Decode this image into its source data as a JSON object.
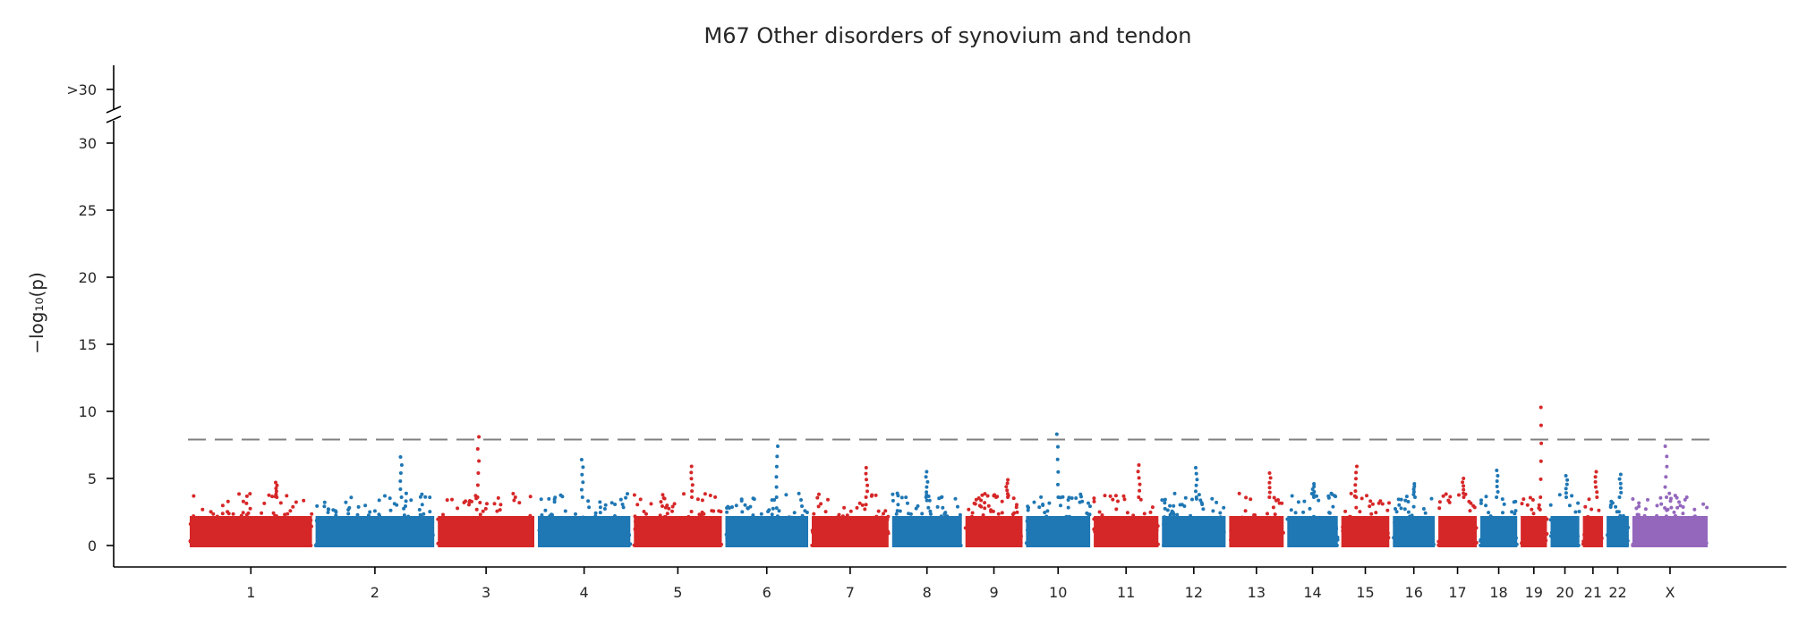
{
  "chart_data": {
    "type": "scatter",
    "title": "M67 Other disorders of synovium and tendon",
    "ylabel": "−log₁₀(p)",
    "y_ticks": [
      0,
      5,
      10,
      15,
      20,
      25,
      30
    ],
    "y_tick_labels": [
      "0",
      "5",
      "10",
      "15",
      "20",
      "25",
      "30"
    ],
    "y_break_label": ">30",
    "ylim": [
      0,
      30
    ],
    "threshold": 7.9,
    "colors": {
      "odd": "#d62728",
      "even": "#1f77b4",
      "X": "#9467bd"
    },
    "chromosomes": [
      {
        "label": "1",
        "start": 0,
        "end": 249,
        "max": 4.7,
        "color": "#d62728"
      },
      {
        "label": "2",
        "start": 249,
        "end": 491,
        "max": 6.6,
        "color": "#1f77b4"
      },
      {
        "label": "3",
        "start": 491,
        "end": 689,
        "max": 8.1,
        "color": "#d62728"
      },
      {
        "label": "4",
        "start": 689,
        "end": 879,
        "max": 6.4,
        "color": "#1f77b4"
      },
      {
        "label": "5",
        "start": 879,
        "end": 1060,
        "max": 5.9,
        "color": "#d62728"
      },
      {
        "label": "6",
        "start": 1060,
        "end": 1231,
        "max": 7.4,
        "color": "#1f77b4"
      },
      {
        "label": "7",
        "start": 1231,
        "end": 1390,
        "max": 5.8,
        "color": "#d62728"
      },
      {
        "label": "8",
        "start": 1390,
        "end": 1535,
        "max": 5.5,
        "color": "#1f77b4"
      },
      {
        "label": "9",
        "start": 1535,
        "end": 1655,
        "max": 4.9,
        "color": "#d62728"
      },
      {
        "label": "10",
        "start": 1655,
        "end": 1789,
        "max": 8.3,
        "color": "#1f77b4"
      },
      {
        "label": "11",
        "start": 1789,
        "end": 1924,
        "max": 6.0,
        "color": "#d62728"
      },
      {
        "label": "12",
        "start": 1924,
        "end": 2057,
        "max": 5.8,
        "color": "#1f77b4"
      },
      {
        "label": "13",
        "start": 2057,
        "end": 2172,
        "max": 5.4,
        "color": "#d62728"
      },
      {
        "label": "14",
        "start": 2172,
        "end": 2279,
        "max": 4.6,
        "color": "#1f77b4"
      },
      {
        "label": "15",
        "start": 2279,
        "end": 2381,
        "max": 5.9,
        "color": "#d62728"
      },
      {
        "label": "16",
        "start": 2381,
        "end": 2471,
        "max": 4.6,
        "color": "#1f77b4"
      },
      {
        "label": "17",
        "start": 2471,
        "end": 2554,
        "max": 5.0,
        "color": "#d62728"
      },
      {
        "label": "18",
        "start": 2554,
        "end": 2634,
        "max": 5.6,
        "color": "#1f77b4"
      },
      {
        "label": "19",
        "start": 2634,
        "end": 2693,
        "max": 10.3,
        "color": "#d62728"
      },
      {
        "label": "20",
        "start": 2693,
        "end": 2757,
        "max": 5.2,
        "color": "#1f77b4"
      },
      {
        "label": "21",
        "start": 2757,
        "end": 2804,
        "max": 5.5,
        "color": "#d62728"
      },
      {
        "label": "22",
        "start": 2804,
        "end": 2855,
        "max": 5.3,
        "color": "#1f77b4"
      },
      {
        "label": "X",
        "start": 2855,
        "end": 3011,
        "max": 7.4,
        "color": "#9467bd"
      }
    ]
  }
}
